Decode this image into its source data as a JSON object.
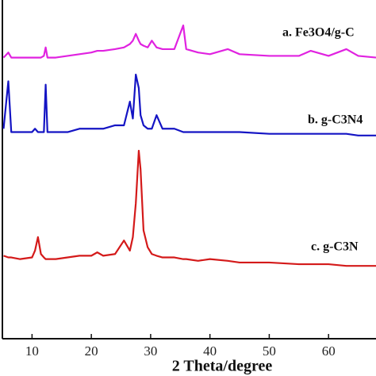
{
  "chart_data": {
    "type": "line",
    "x_label": "2 Theta/degree",
    "xlim": [
      5,
      68
    ],
    "ylim": [
      0,
      100
    ],
    "xticks": [
      10,
      20,
      30,
      40,
      50,
      60
    ],
    "x": [
      5.2,
      6,
      6.5,
      8,
      10,
      10.5,
      11,
      11.5,
      12,
      12.3,
      12.6,
      14,
      16,
      18,
      20,
      21,
      22,
      24,
      25.5,
      26.5,
      27,
      27.5,
      28,
      28.3,
      28.8,
      29.5,
      30.2,
      31,
      32,
      34,
      35.5,
      36,
      38,
      40,
      43,
      45,
      50,
      55,
      57,
      60,
      63,
      65,
      68
    ],
    "series": [
      {
        "name": "a. Fe3O4/g-C",
        "color": "#e022e0",
        "values": [
          83,
          84.5,
          83,
          83,
          83,
          83,
          83,
          83,
          83.5,
          86,
          83,
          83,
          83.5,
          84,
          84.5,
          85,
          85,
          85.5,
          86,
          87,
          88,
          90,
          88,
          87,
          86.5,
          86,
          88,
          86,
          85.5,
          85.5,
          92.5,
          85.5,
          84.5,
          84,
          85.5,
          84,
          83.5,
          83.5,
          85,
          83.5,
          85.5,
          83.5,
          83
        ]
      },
      {
        "name": "b. g-C3N4",
        "color": "#1414c4",
        "values": [
          62,
          76,
          61,
          61,
          61,
          62,
          61,
          61,
          61,
          75,
          61,
          61,
          61,
          62,
          62,
          62,
          62,
          63,
          63,
          70,
          65,
          78,
          74,
          66,
          63,
          62,
          62,
          66,
          62,
          62,
          61,
          61,
          61,
          61,
          61,
          61,
          60.5,
          60.5,
          60.5,
          60.5,
          60.5,
          60,
          60
        ]
      },
      {
        "name": "c. g-C3N",
        "color": "#d41a1a",
        "values": [
          24.5,
          24,
          24,
          23.5,
          24,
          26,
          30,
          25,
          24,
          23.5,
          23.5,
          23.5,
          24,
          24.5,
          24.5,
          25.5,
          24.5,
          25,
          29,
          26,
          30,
          40,
          55.5,
          50,
          32,
          27,
          25,
          24.5,
          24,
          24,
          23.5,
          23.5,
          23,
          23.5,
          23,
          22.5,
          22.5,
          22,
          22,
          22,
          21.5,
          21.5,
          21.5
        ]
      }
    ]
  }
}
